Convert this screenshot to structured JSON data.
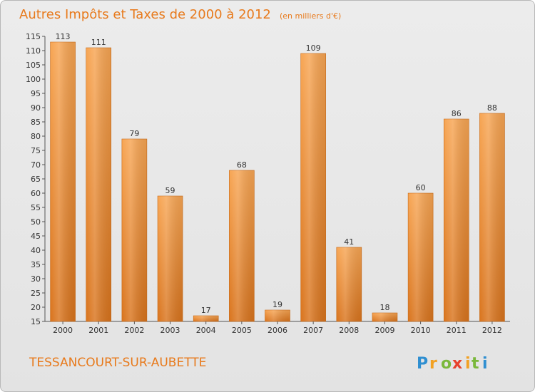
{
  "chart_data": {
    "type": "bar",
    "title": "Autres Impôts et Taxes de 2000 à 2012",
    "subtitle": "(en milliers d'€)",
    "categories": [
      "2000",
      "2001",
      "2002",
      "2003",
      "2004",
      "2005",
      "2006",
      "2007",
      "2008",
      "2009",
      "2010",
      "2011",
      "2012"
    ],
    "values": [
      113,
      111,
      79,
      59,
      17,
      68,
      19,
      109,
      41,
      18,
      60,
      86,
      88
    ],
    "ylim": [
      15,
      115
    ],
    "yticks": [
      "15",
      "20",
      "25",
      "30",
      "35",
      "40",
      "45",
      "50",
      "55",
      "60",
      "65",
      "70",
      "75",
      "80",
      "85",
      "90",
      "95",
      "100",
      "105",
      "110",
      "115"
    ],
    "grid": false,
    "bar_color": "#f0913a"
  },
  "commune": "TESSANCOURT-SUR-AUBETTE",
  "logo": {
    "letters": [
      "P",
      "r",
      "o",
      "x",
      "i",
      "t",
      "i"
    ],
    "colors": [
      "#2f8fd1",
      "#f2a123",
      "#7ab83b",
      "#e8412c",
      "#f2a123",
      "#7ab83b",
      "#2f8fd1"
    ]
  }
}
